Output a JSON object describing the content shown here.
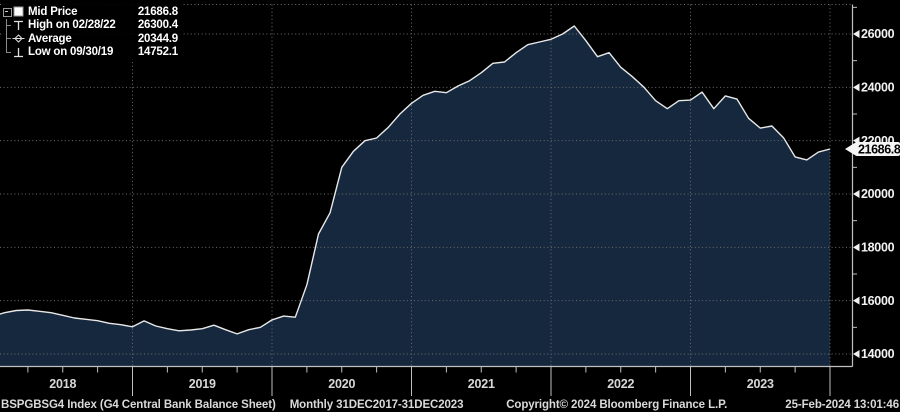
{
  "app": {
    "name": "Bloomberg chart - G4 Central Bank Balance Sheet"
  },
  "colors": {
    "background": "#000000",
    "area_fill": "#15283d",
    "line": "#e8e8e8",
    "grid": "#6e6e6e",
    "axis": "#c0c0c0",
    "tick_label": "#f2f2f2",
    "year_label": "#d8d8d8",
    "footer_text": "#d9d9d9",
    "badge_bg": "#f5f5f5",
    "badge_text": "#000000",
    "legend_text": "#ffffff"
  },
  "legend": {
    "rows": [
      {
        "marker": "mid-square",
        "label": "Mid Price",
        "value": "21686.8"
      },
      {
        "marker": "high-tick",
        "label": "High on 02/28/22",
        "value": "26300.4"
      },
      {
        "marker": "average-diamond",
        "label": "Average",
        "value": "20344.9"
      },
      {
        "marker": "low-tick",
        "label": "Low on 09/30/19",
        "value": "14752.1"
      }
    ]
  },
  "footer": {
    "instrument": "BSPGBSG4 Index (G4 Central Bank Balance Sheet)",
    "period": "Monthly 31DEC2017-31DEC2023",
    "copyright": "Copyright© 2024 Bloomberg Finance L.P.",
    "datetime": "25-Feb-2024 13:01:46"
  },
  "chart_data": {
    "type": "area",
    "title": "G4 Central Bank Balance Sheet (BSPGBSG4 Index)",
    "frequency": "Monthly",
    "x_range": [
      "2017-12-31",
      "2023-12-31"
    ],
    "x": [
      "2017-12",
      "2018-01",
      "2018-02",
      "2018-03",
      "2018-04",
      "2018-05",
      "2018-06",
      "2018-07",
      "2018-08",
      "2018-09",
      "2018-10",
      "2018-11",
      "2018-12",
      "2019-01",
      "2019-02",
      "2019-03",
      "2019-04",
      "2019-05",
      "2019-06",
      "2019-07",
      "2019-08",
      "2019-09",
      "2019-10",
      "2019-11",
      "2019-12",
      "2020-01",
      "2020-02",
      "2020-03",
      "2020-04",
      "2020-05",
      "2020-06",
      "2020-07",
      "2020-08",
      "2020-09",
      "2020-10",
      "2020-11",
      "2020-12",
      "2021-01",
      "2021-02",
      "2021-03",
      "2021-04",
      "2021-05",
      "2021-06",
      "2021-07",
      "2021-08",
      "2021-09",
      "2021-10",
      "2021-11",
      "2021-12",
      "2022-01",
      "2022-02",
      "2022-03",
      "2022-04",
      "2022-05",
      "2022-06",
      "2022-07",
      "2022-08",
      "2022-09",
      "2022-10",
      "2022-11",
      "2022-12",
      "2023-01",
      "2023-02",
      "2023-03",
      "2023-04",
      "2023-05",
      "2023-06",
      "2023-07",
      "2023-08",
      "2023-09",
      "2023-10",
      "2023-11",
      "2023-12"
    ],
    "values": [
      15420,
      15550,
      15630,
      15650,
      15600,
      15550,
      15450,
      15350,
      15300,
      15250,
      15150,
      15100,
      15020,
      15240,
      15050,
      14950,
      14870,
      14900,
      14950,
      15080,
      14910,
      14752.1,
      14910,
      15000,
      15280,
      15420,
      15380,
      16600,
      18500,
      19300,
      21000,
      21600,
      22000,
      22100,
      22500,
      23000,
      23400,
      23700,
      23850,
      23800,
      24050,
      24250,
      24550,
      24900,
      24950,
      25300,
      25600,
      25700,
      25800,
      26000,
      26300.4,
      25750,
      25150,
      25300,
      24750,
      24400,
      24000,
      23500,
      23200,
      23500,
      23520,
      23820,
      23200,
      23680,
      23560,
      22840,
      22470,
      22550,
      22110,
      21390,
      21280,
      21570,
      21686.8
    ],
    "last_price": 21686.8,
    "last_price_label": "21686.8",
    "stats": {
      "mid_price": 21686.8,
      "high": 26300.4,
      "high_date": "02/28/22",
      "average": 20344.9,
      "low": 14752.1,
      "low_date": "09/30/19"
    },
    "y_axis": {
      "side": "right",
      "tick_labels": [
        26000,
        24000,
        22000,
        20000,
        18000,
        16000,
        14000
      ],
      "minor_step": 1000,
      "minor_top": 27000,
      "min": 13500,
      "max": 27200
    },
    "x_axis": {
      "tick_labels": [
        "2018",
        "2019",
        "2020",
        "2021",
        "2022",
        "2023"
      ],
      "months_per_label": 12
    },
    "grid": "dotted",
    "legend_position": "top-left"
  }
}
